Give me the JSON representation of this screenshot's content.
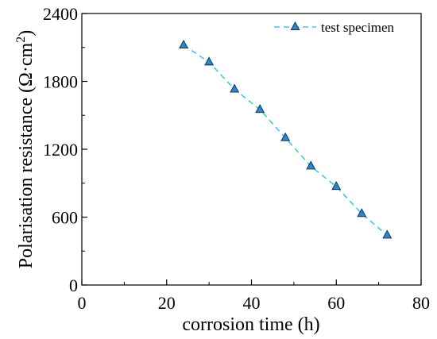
{
  "chart_data": {
    "type": "line",
    "xlabel": "corrosion time (h)",
    "ylabel_main": "Polarisation resistance (Ω·cm",
    "ylabel_sup": "2",
    "ylabel_close": ")",
    "xlim": [
      0,
      80
    ],
    "ylim": [
      0,
      2400
    ],
    "x_ticks": [
      0,
      20,
      40,
      60,
      80
    ],
    "y_ticks": [
      0,
      600,
      1200,
      1800,
      2400
    ],
    "x_tick_labels": [
      "0",
      "20",
      "40",
      "60",
      "80"
    ],
    "y_tick_labels": [
      "0",
      "600",
      "1200",
      "1800",
      "2400"
    ],
    "grid": false,
    "legend_position": "top-right",
    "series": [
      {
        "name": "test specimen",
        "marker": "triangle",
        "line_style": "dashed",
        "line_color": "#3fc7ee",
        "marker_fill": "#2e86c8",
        "marker_stroke": "#0d2d4d",
        "x": [
          24,
          30,
          36,
          42,
          48,
          54,
          60,
          66,
          72
        ],
        "y": [
          2120,
          1970,
          1730,
          1550,
          1300,
          1050,
          870,
          630,
          440
        ]
      }
    ]
  }
}
